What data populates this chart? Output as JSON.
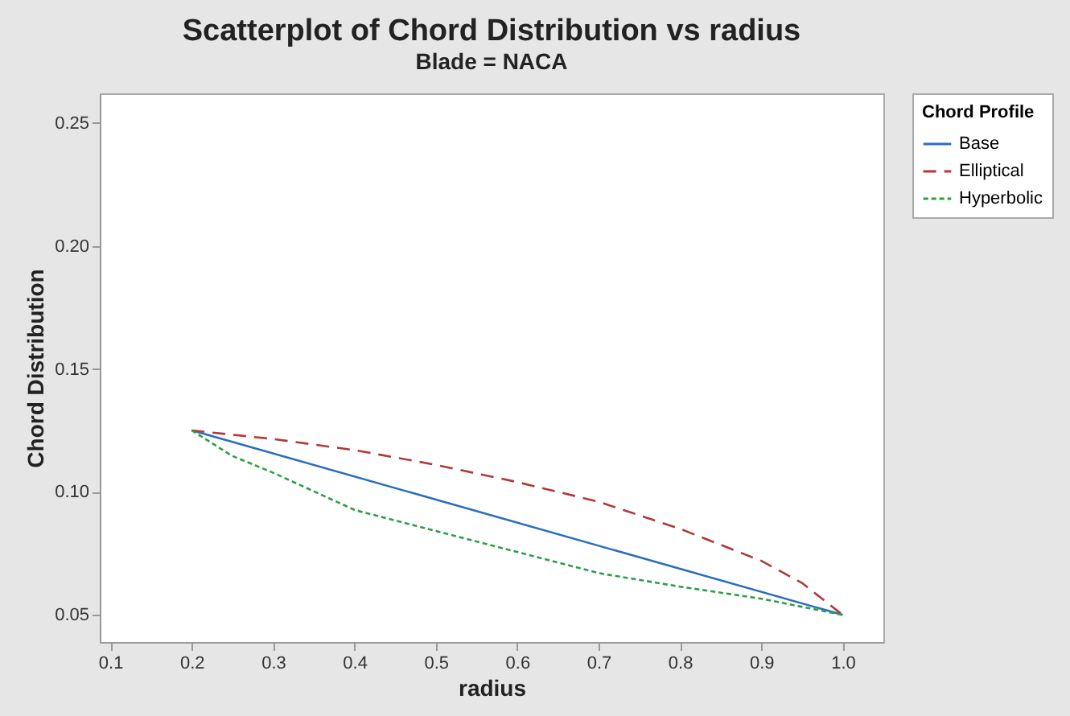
{
  "chart_data": {
    "type": "line",
    "title": "Scatterplot of Chord Distribution vs radius",
    "subtitle": "Blade = NACA",
    "xlabel": "radius",
    "ylabel": "Chord Distribution",
    "legend_title": "Chord Profile",
    "xlim": [
      0.087,
      1.05
    ],
    "ylim": [
      0.039,
      0.262
    ],
    "xticks": [
      {
        "value": 0.1,
        "label": "0.1"
      },
      {
        "value": 0.2,
        "label": "0.2"
      },
      {
        "value": 0.3,
        "label": "0.3"
      },
      {
        "value": 0.4,
        "label": "0.4"
      },
      {
        "value": 0.5,
        "label": "0.5"
      },
      {
        "value": 0.6,
        "label": "0.6"
      },
      {
        "value": 0.7,
        "label": "0.7"
      },
      {
        "value": 0.8,
        "label": "0.8"
      },
      {
        "value": 0.9,
        "label": "0.9"
      },
      {
        "value": 1.0,
        "label": "1.0"
      }
    ],
    "yticks": [
      {
        "value": 0.05,
        "label": "0.05"
      },
      {
        "value": 0.1,
        "label": "0.10"
      },
      {
        "value": 0.15,
        "label": "0.15"
      },
      {
        "value": 0.2,
        "label": "0.20"
      },
      {
        "value": 0.25,
        "label": "0.25"
      }
    ],
    "grid": false,
    "legend": "top right",
    "marker": "none",
    "series": [
      {
        "name": "Base",
        "color": "#2a6ebd",
        "line_style": "solid",
        "x": [
          0.2,
          1.0
        ],
        "values": [
          0.125,
          0.05
        ]
      },
      {
        "name": "Elliptical",
        "color": "#b03a3a",
        "line_style": "dashed",
        "x": [
          0.2,
          0.3,
          0.4,
          0.5,
          0.6,
          0.7,
          0.8,
          0.9,
          0.95,
          1.0
        ],
        "values": [
          0.125,
          0.1215,
          0.117,
          0.111,
          0.104,
          0.096,
          0.085,
          0.072,
          0.063,
          0.05
        ]
      },
      {
        "name": "Hyperbolic",
        "color": "#2e9e44",
        "line_style": "dotted",
        "x": [
          0.2,
          0.25,
          0.3,
          0.4,
          0.5,
          0.6,
          0.7,
          0.8,
          0.9,
          1.0
        ],
        "values": [
          0.125,
          0.1146,
          0.1078,
          0.0927,
          0.0841,
          0.0756,
          0.067,
          0.0615,
          0.0566,
          0.05
        ]
      }
    ]
  }
}
